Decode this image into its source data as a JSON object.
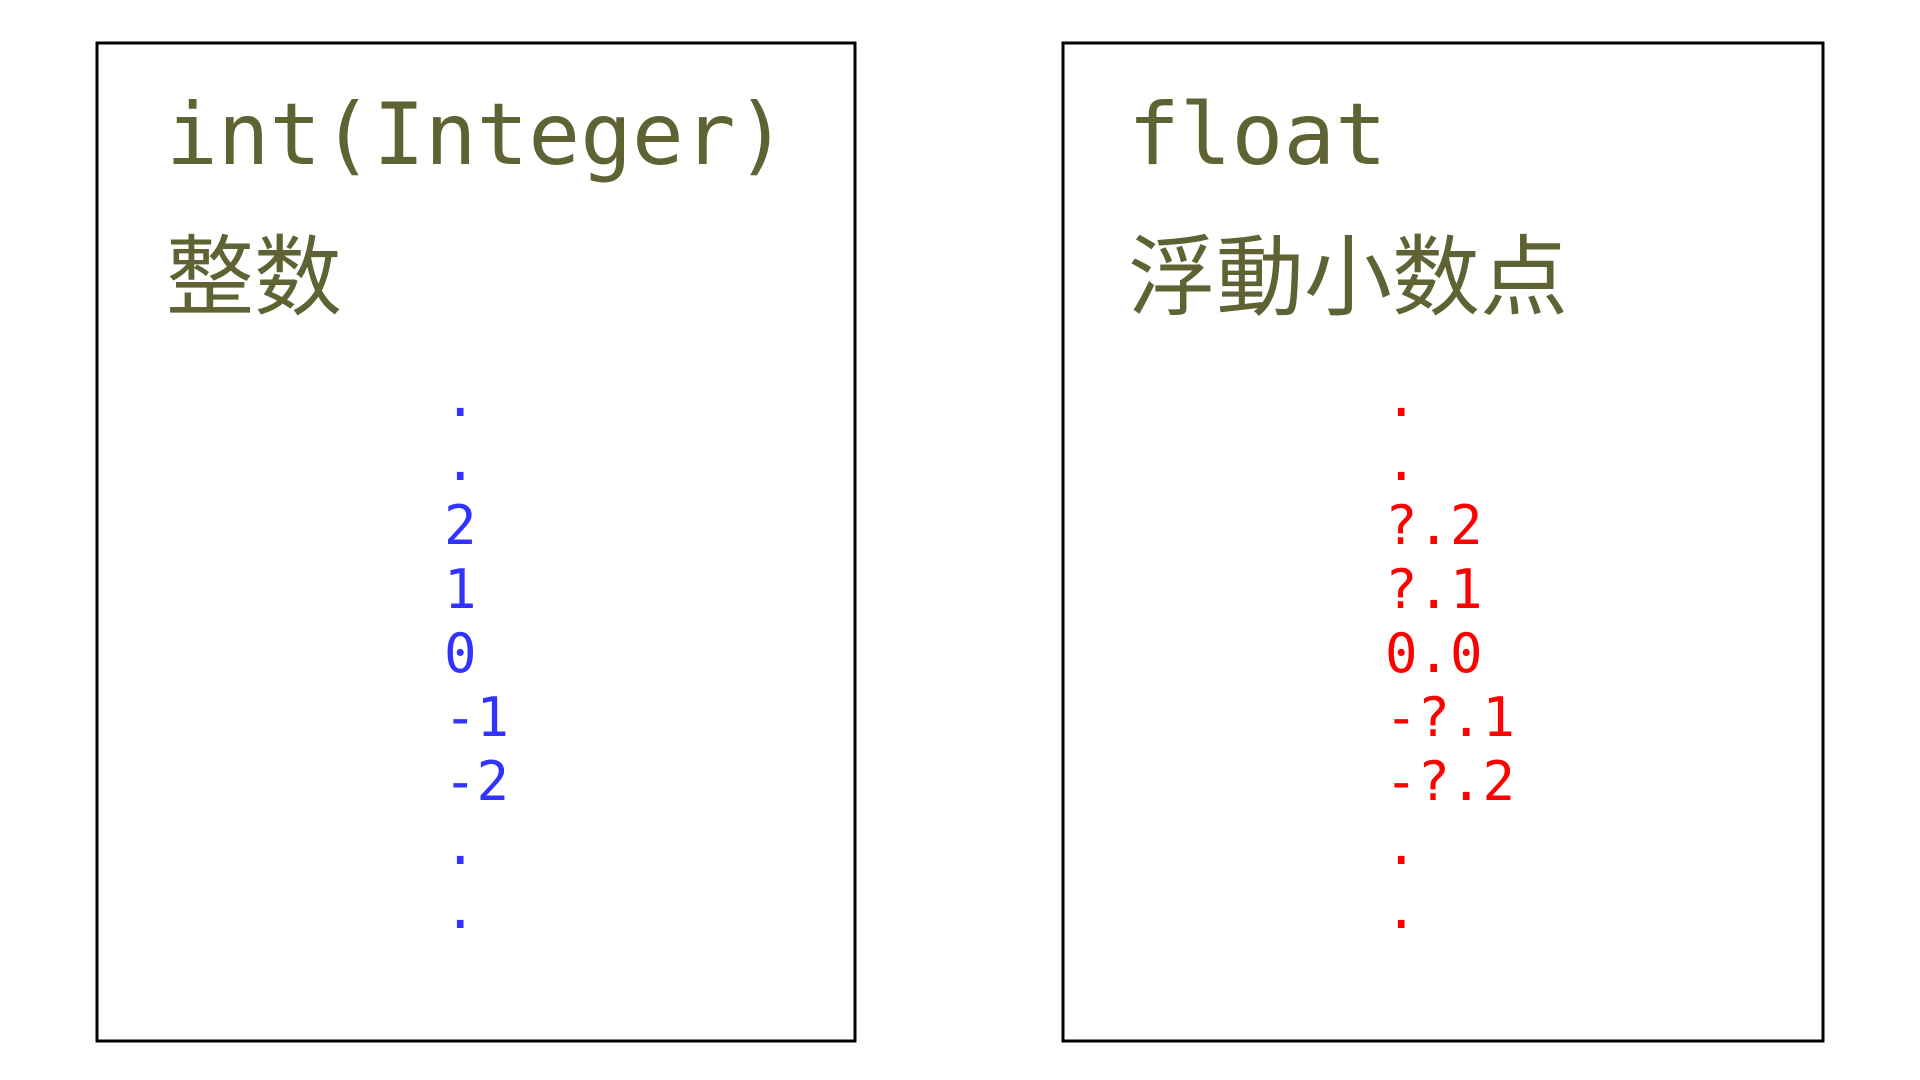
{
  "panels": [
    {
      "title": "int(Integer)",
      "subtitle": "整数",
      "items": [
        ".",
        ".",
        "2",
        "1",
        "0",
        "-1",
        "-2",
        ".",
        "."
      ]
    },
    {
      "title": "float",
      "subtitle": "浮動小数点",
      "items": [
        ".",
        ".",
        "?.2",
        "?.1",
        "0.0",
        "-?.1",
        "-?.2",
        ".",
        "."
      ]
    }
  ]
}
